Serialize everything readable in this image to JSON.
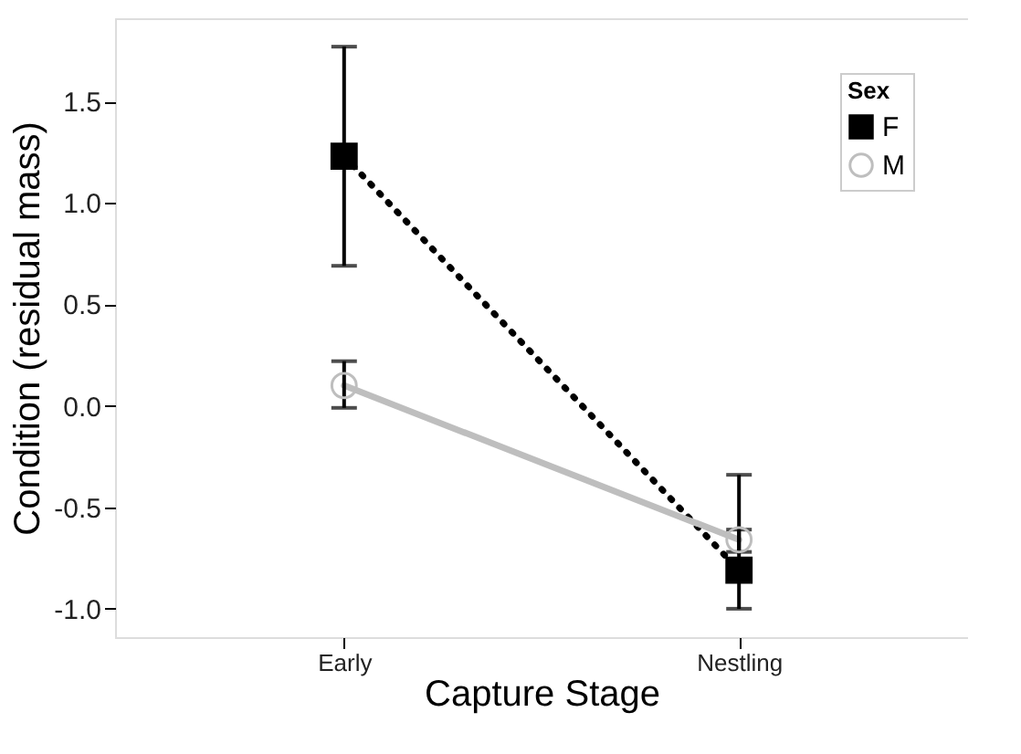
{
  "chart_data": {
    "type": "line",
    "xlabel": "Capture Stage",
    "ylabel": "Condition (residual mass)",
    "legend_title": "Sex",
    "legend": "top right",
    "grid": false,
    "categories": [
      "Early",
      "Nestling"
    ],
    "ylim": [
      -1.14,
      1.91
    ],
    "yticks": [
      {
        "value": -1.0,
        "label": "-1.0"
      },
      {
        "value": -0.5,
        "label": "-0.5"
      },
      {
        "value": 0.0,
        "label": "0.0"
      },
      {
        "value": 0.5,
        "label": "0.5"
      },
      {
        "value": 1.0,
        "label": "1.0"
      },
      {
        "value": 1.5,
        "label": "1.5"
      }
    ],
    "series": [
      {
        "name": "F",
        "color": "#000000",
        "marker": "square",
        "line_style": "dotted",
        "values": [
          1.23,
          -0.81
        ],
        "errors": [
          [
            0.69,
            1.77
          ],
          [
            -1.0,
            -0.34
          ]
        ]
      },
      {
        "name": "M",
        "color": "#bebebe",
        "marker": "circle",
        "line_style": "solid",
        "values": [
          0.1,
          -0.66
        ],
        "errors": [
          [
            -0.01,
            0.22
          ],
          [
            -0.72,
            -0.61
          ]
        ]
      }
    ]
  }
}
